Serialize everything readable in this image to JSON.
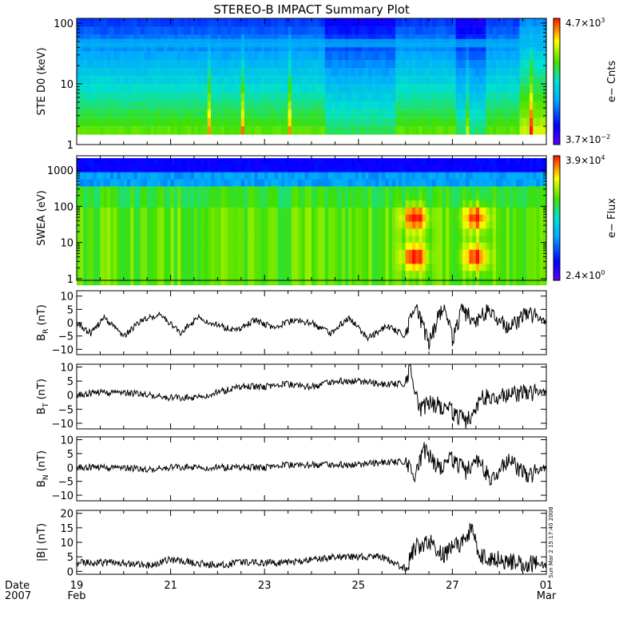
{
  "title": "STEREO-B IMPACT Summary Plot",
  "date_label": [
    "Date",
    "2007"
  ],
  "x_ticks": [
    {
      "day": 19,
      "label": "19",
      "month": "Feb"
    },
    {
      "day": 21,
      "label": "21",
      "month": ""
    },
    {
      "day": 23,
      "label": "23",
      "month": ""
    },
    {
      "day": 25,
      "label": "25",
      "month": ""
    },
    {
      "day": 27,
      "label": "27",
      "month": ""
    },
    {
      "day": 29,
      "label": "01",
      "month": "Mar"
    }
  ],
  "side_stamp": "Sun Mar  2 15:17:40 2008",
  "chart_data": [
    {
      "type": "heatmap",
      "name": "ste",
      "ylabel": "STE D0 (keV)",
      "y_scale": "log",
      "ylim": [
        1,
        120
      ],
      "y_ticks": [
        {
          "v": 1,
          "label": "1"
        },
        {
          "v": 10,
          "label": "10"
        },
        {
          "v": 100,
          "label": "100"
        }
      ],
      "colorbar_label": "e− Cnts",
      "colorbar_max": {
        "base": "4.7×10",
        "exp": "3"
      },
      "colorbar_min": {
        "base": "3.7×10",
        "exp": "−2"
      },
      "x_range_days": [
        19,
        29
      ]
    },
    {
      "type": "heatmap",
      "name": "swea",
      "ylabel": "SWEA (eV)",
      "y_scale": "log",
      "ylim": [
        0.9,
        2500
      ],
      "y_ticks": [
        {
          "v": 1,
          "label": "1"
        },
        {
          "v": 10,
          "label": "10"
        },
        {
          "v": 100,
          "label": "100"
        },
        {
          "v": 1000,
          "label": "1000"
        }
      ],
      "colorbar_label": "e− Flux",
      "colorbar_max": {
        "base": "3.9×10",
        "exp": "4"
      },
      "colorbar_min": {
        "base": "2.4×10",
        "exp": "0"
      },
      "x_range_days": [
        19,
        29
      ]
    },
    {
      "type": "line",
      "name": "br",
      "ylabel": "B",
      "ylabel_sub": "R",
      "ylabel_unit": " (nT)",
      "ylim": [
        -12,
        12
      ],
      "y_ticks": [
        -10,
        -5,
        0,
        5,
        10
      ],
      "x_range_days": [
        19,
        29
      ],
      "approx_points": [
        [
          19.0,
          0
        ],
        [
          19.3,
          -4
        ],
        [
          19.6,
          2
        ],
        [
          20.0,
          -5
        ],
        [
          20.4,
          1
        ],
        [
          20.8,
          3
        ],
        [
          21.2,
          -4
        ],
        [
          21.6,
          2
        ],
        [
          22.0,
          -1
        ],
        [
          22.4,
          -3
        ],
        [
          22.8,
          1
        ],
        [
          23.2,
          -2
        ],
        [
          23.6,
          1
        ],
        [
          24.0,
          0
        ],
        [
          24.4,
          -4
        ],
        [
          24.8,
          2
        ],
        [
          25.2,
          -6
        ],
        [
          25.6,
          -1
        ],
        [
          26.0,
          -5
        ],
        [
          26.2,
          6
        ],
        [
          26.5,
          -8
        ],
        [
          26.8,
          7
        ],
        [
          27.0,
          -6
        ],
        [
          27.2,
          4
        ],
        [
          27.5,
          1
        ],
        [
          27.8,
          5
        ],
        [
          28.2,
          -2
        ],
        [
          28.6,
          4
        ],
        [
          29.0,
          0
        ]
      ]
    },
    {
      "type": "line",
      "name": "bt",
      "ylabel": "B",
      "ylabel_sub": "T",
      "ylabel_unit": " (nT)",
      "ylim": [
        -12,
        11
      ],
      "y_ticks": [
        -10,
        -5,
        0,
        5,
        10
      ],
      "x_range_days": [
        19,
        29
      ],
      "approx_points": [
        [
          19.0,
          0
        ],
        [
          19.5,
          1
        ],
        [
          20.0,
          1
        ],
        [
          20.5,
          0
        ],
        [
          21.0,
          -1
        ],
        [
          21.5,
          -1
        ],
        [
          22.0,
          1
        ],
        [
          22.5,
          3
        ],
        [
          23.0,
          3
        ],
        [
          23.5,
          4
        ],
        [
          24.0,
          3
        ],
        [
          24.5,
          5
        ],
        [
          25.0,
          5
        ],
        [
          25.5,
          4
        ],
        [
          26.0,
          4
        ],
        [
          26.1,
          9
        ],
        [
          26.3,
          -6
        ],
        [
          26.5,
          -3
        ],
        [
          26.8,
          -4
        ],
        [
          27.0,
          -6
        ],
        [
          27.3,
          -10
        ],
        [
          27.4,
          -7
        ],
        [
          27.6,
          -1
        ],
        [
          28.0,
          0
        ],
        [
          28.5,
          1
        ],
        [
          29.0,
          1
        ]
      ]
    },
    {
      "type": "line",
      "name": "bn",
      "ylabel": "B",
      "ylabel_sub": "N",
      "ylabel_unit": " (nT)",
      "ylim": [
        -12,
        11
      ],
      "y_ticks": [
        -10,
        -5,
        0,
        5,
        10
      ],
      "x_range_days": [
        19,
        29
      ],
      "approx_points": [
        [
          19.0,
          0
        ],
        [
          19.5,
          0
        ],
        [
          20.0,
          0
        ],
        [
          20.5,
          -1
        ],
        [
          21.0,
          0
        ],
        [
          21.5,
          0
        ],
        [
          22.0,
          0
        ],
        [
          22.5,
          0
        ],
        [
          23.0,
          0
        ],
        [
          23.5,
          1
        ],
        [
          24.0,
          1
        ],
        [
          24.5,
          1
        ],
        [
          25.0,
          1
        ],
        [
          25.5,
          2
        ],
        [
          26.0,
          2
        ],
        [
          26.2,
          -4
        ],
        [
          26.4,
          6
        ],
        [
          26.7,
          0
        ],
        [
          27.0,
          3
        ],
        [
          27.3,
          -2
        ],
        [
          27.5,
          4
        ],
        [
          27.8,
          -4
        ],
        [
          28.2,
          3
        ],
        [
          28.6,
          -3
        ],
        [
          29.0,
          0
        ]
      ]
    },
    {
      "type": "line",
      "name": "bmag",
      "ylabel": "|B| (nT)",
      "ylim": [
        -1,
        21
      ],
      "y_ticks": [
        0,
        5,
        10,
        15,
        20
      ],
      "x_range_days": [
        19,
        29
      ],
      "approx_points": [
        [
          19.0,
          3
        ],
        [
          19.5,
          3
        ],
        [
          20.0,
          3
        ],
        [
          20.5,
          2
        ],
        [
          21.0,
          4
        ],
        [
          21.5,
          3
        ],
        [
          22.0,
          2
        ],
        [
          22.5,
          3
        ],
        [
          23.0,
          3
        ],
        [
          23.5,
          3
        ],
        [
          24.0,
          4
        ],
        [
          24.5,
          5
        ],
        [
          25.0,
          5
        ],
        [
          25.5,
          5
        ],
        [
          26.0,
          1
        ],
        [
          26.2,
          8
        ],
        [
          26.5,
          10
        ],
        [
          26.8,
          6
        ],
        [
          27.0,
          8
        ],
        [
          27.2,
          10
        ],
        [
          27.4,
          15
        ],
        [
          27.6,
          5
        ],
        [
          28.0,
          4
        ],
        [
          28.5,
          3
        ],
        [
          29.0,
          2
        ]
      ]
    }
  ]
}
